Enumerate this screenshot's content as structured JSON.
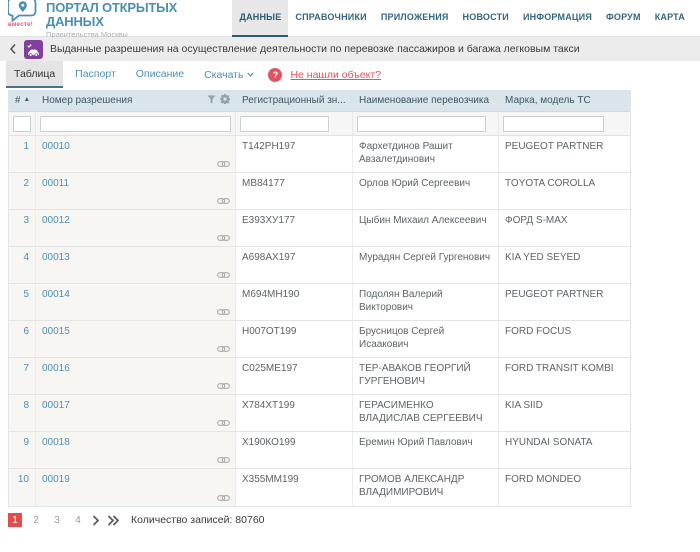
{
  "colors": {
    "brand_blue": "#4a8fb5",
    "accent_purple": "#8140a0",
    "alert_red": "#e0535f",
    "table_header_bg": "#d9e4eb",
    "active_page_red": "#e24c4c"
  },
  "brand": {
    "badge": "вместе!",
    "title": "ПОРТАЛ ОТКРЫТЫХ ДАННЫХ",
    "subtitle": "Правительства Москвы"
  },
  "nav": {
    "items": [
      {
        "label": "ДАННЫЕ",
        "active": true
      },
      {
        "label": "СПРАВОЧНИКИ",
        "active": false
      },
      {
        "label": "ПРИЛОЖЕНИЯ",
        "active": false
      },
      {
        "label": "НОВОСТИ",
        "active": false
      },
      {
        "label": "ИНФОРМАЦИЯ",
        "active": false
      },
      {
        "label": "ФОРУМ",
        "active": false
      },
      {
        "label": "КАРТА",
        "active": false
      }
    ]
  },
  "dataset": {
    "title": "Выданные разрешения на осуществление деятельности по перевозке пассажиров и багажа легковым такси",
    "icon": "taxi-car-check"
  },
  "tabs": {
    "items": [
      {
        "label": "Таблица",
        "active": true
      },
      {
        "label": "Паспорт",
        "active": false
      },
      {
        "label": "Описание",
        "active": false
      }
    ],
    "download_label": "Скачать",
    "help_label": "?",
    "not_found_label": "Не нашли объект?"
  },
  "table": {
    "columns": [
      "#",
      "Номер разрешения",
      "Регистрационный зн...",
      "Наименование перевозчика",
      "Марка, модель ТС"
    ],
    "header_icons": [
      "sort-asc",
      "filter-funnel",
      "gear"
    ],
    "rows": [
      {
        "index": "1",
        "permit": "00010",
        "plate": "Т142РН197",
        "carrier": "Фархетдинов Рашит Авзалетдинович",
        "model": "PEUGEOT PARTNER"
      },
      {
        "index": "2",
        "permit": "00011",
        "plate": "МВ84177",
        "carrier": "Орлов Юрий Сергеевич",
        "model": "TOYOTA COROLLA"
      },
      {
        "index": "3",
        "permit": "00012",
        "plate": "Е393ХУ177",
        "carrier": "Цыбин Михаил Алексеевич",
        "model": "ФОРД S-MAX"
      },
      {
        "index": "4",
        "permit": "00013",
        "plate": "А698АХ197",
        "carrier": "Мурадян Сергей Гургенович",
        "model": "KIA YED SEYED"
      },
      {
        "index": "5",
        "permit": "00014",
        "plate": "М694МН190",
        "carrier": "Подолян Валерий Викторович",
        "model": "PEUGEOT PARTNER"
      },
      {
        "index": "6",
        "permit": "00015",
        "plate": "Н007ОТ199",
        "carrier": "Брусницов Сергей Исаакович",
        "model": "FORD FOCUS"
      },
      {
        "index": "7",
        "permit": "00016",
        "plate": "С025МЕ197",
        "carrier": "ТЕР-АВАКОВ ГЕОРГИЙ ГУРГЕНОВИЧ",
        "model": "FORD TRANSIT KOMBI"
      },
      {
        "index": "8",
        "permit": "00017",
        "plate": "Х784ХТ199",
        "carrier": "ГЕРАСИМЕНКО ВЛАДИСЛАВ СЕРГЕЕВИЧ",
        "model": "KIA SIID"
      },
      {
        "index": "9",
        "permit": "00018",
        "plate": "Х190КО199",
        "carrier": "Еремин Юрий Павлович",
        "model": "HYUNDAI SONATA"
      },
      {
        "index": "10",
        "permit": "00019",
        "plate": "Х355ММ199",
        "carrier": "ГРОМОВ АЛЕКСАНДР ВЛАДИМИРОВИЧ",
        "model": "FORD MONDEO"
      }
    ]
  },
  "pagination": {
    "pages": [
      {
        "label": "1",
        "active": true
      },
      {
        "label": "2",
        "active": false
      },
      {
        "label": "3",
        "active": false
      },
      {
        "label": "4",
        "active": false
      }
    ],
    "records_label": "Количество записей: 80760"
  }
}
